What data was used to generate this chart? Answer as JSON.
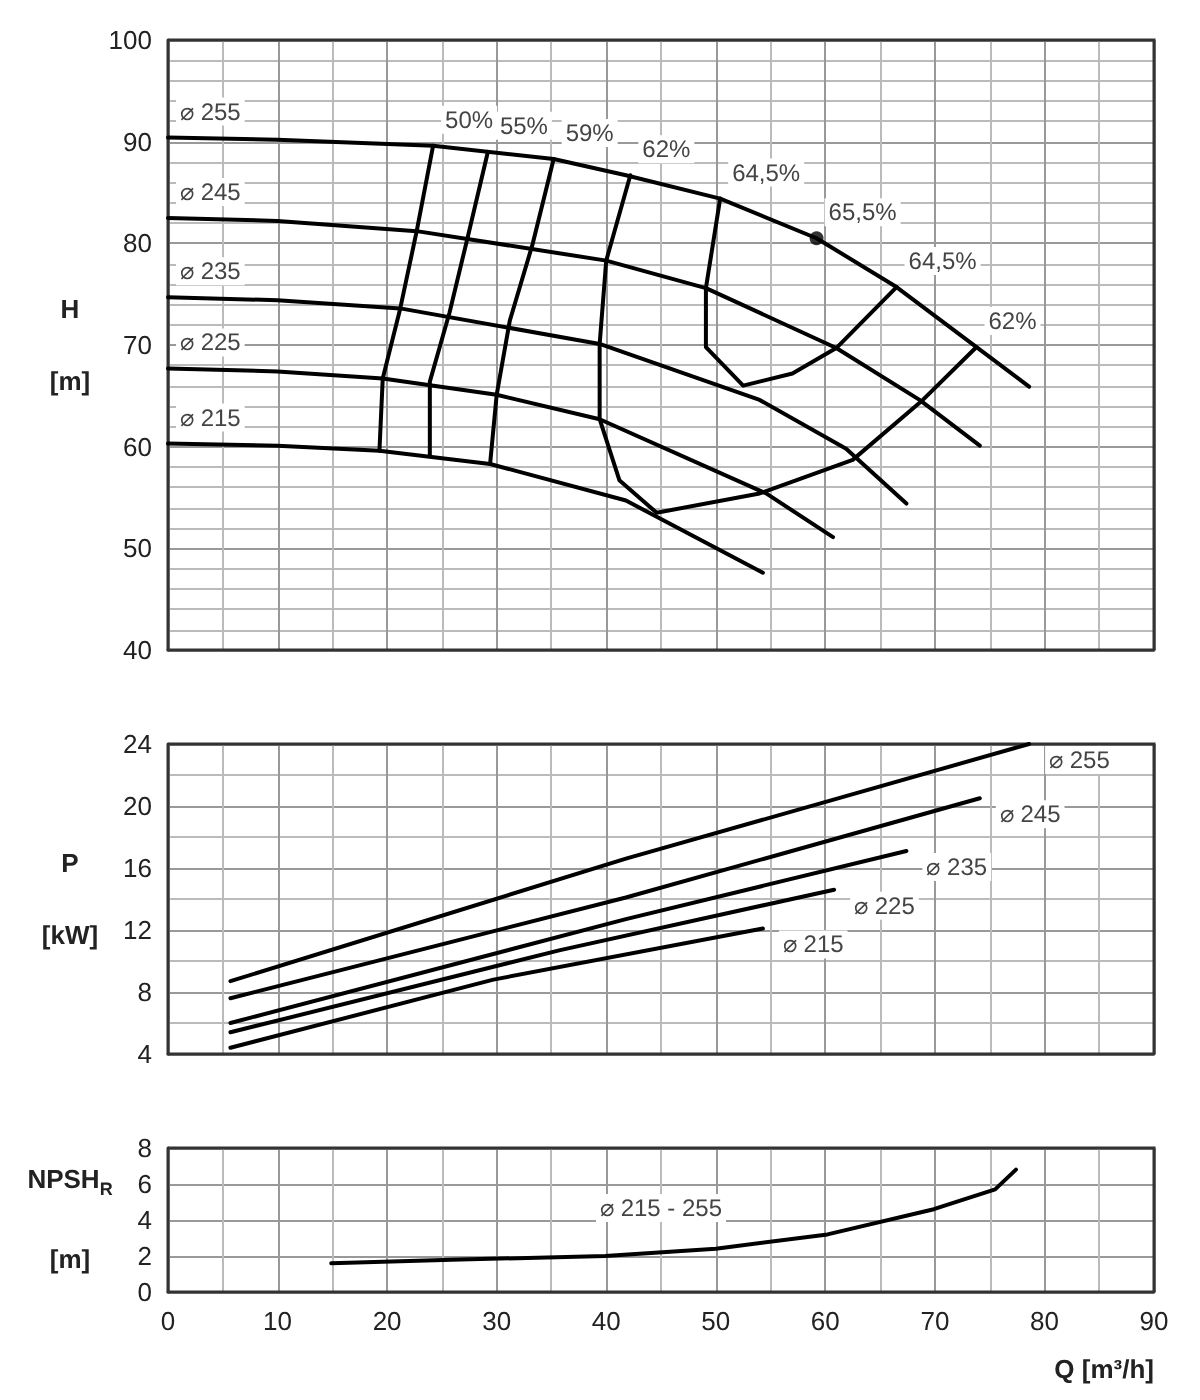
{
  "chart_data": [
    {
      "type": "line",
      "ylabel": "H\n[m]",
      "xlim": [
        0,
        90
      ],
      "xticks": [
        0,
        10,
        20,
        30,
        40,
        50,
        60,
        70,
        80,
        90
      ],
      "ylim": [
        40,
        100
      ],
      "yticks": [
        40,
        50,
        60,
        70,
        80,
        90,
        100
      ],
      "grid": true,
      "tick_labels": "y",
      "line_style": "solid",
      "series": [
        {
          "color": "#000000",
          "x": [
            0,
            10,
            24.2,
            35.2,
            41.8,
            50.4,
            59.2,
            66.5,
            73.8,
            78.6
          ],
          "values": [
            90.4,
            90.2,
            89.6,
            88.3,
            86.7,
            84.4,
            80.5,
            75.7,
            69.8,
            65.9
          ]
        },
        {
          "color": "#000000",
          "x": [
            0,
            10,
            22.7,
            40,
            49.1,
            61,
            68.6,
            74.1
          ],
          "values": [
            82.5,
            82.2,
            81.2,
            78.3,
            75.6,
            69.7,
            64.6,
            60.1
          ]
        },
        {
          "color": "#000000",
          "x": [
            0,
            10,
            21.2,
            39.4,
            54,
            61.9,
            67.4
          ],
          "values": [
            74.7,
            74.4,
            73.6,
            70.1,
            64.6,
            59.8,
            54.4
          ]
        },
        {
          "color": "#000000",
          "x": [
            0,
            10,
            19.6,
            30,
            39.4,
            54.6,
            60.7
          ],
          "values": [
            67.7,
            67.4,
            66.7,
            65.1,
            62.7,
            55.4,
            51.1
          ]
        },
        {
          "color": "#000000",
          "x": [
            0,
            10,
            19.3,
            29.4,
            41.8,
            54.3
          ],
          "values": [
            60.3,
            60.1,
            59.6,
            58.3,
            54.7,
            47.6
          ]
        },
        {
          "color": "#000000",
          "x": [
            24.2,
            22.7,
            21.2,
            19.6,
            19.3
          ],
          "values": [
            89.6,
            81.2,
            73.6,
            66.7,
            59.6
          ]
        },
        {
          "color": "#000000",
          "x": [
            29.2,
            27.4,
            25.7,
            23.9,
            23.9
          ],
          "values": [
            89.0,
            80.8,
            73.2,
            66.4,
            59.1
          ]
        },
        {
          "color": "#000000",
          "x": [
            35.2,
            33.3,
            31.2,
            30,
            29.4
          ],
          "values": [
            88.3,
            80,
            72.4,
            65.1,
            58.3
          ]
        },
        {
          "color": "#000000",
          "x": [
            42.2,
            40,
            39.4,
            39.4,
            41.2,
            44.6,
            54,
            62.5,
            68.9,
            73.8
          ],
          "values": [
            86.7,
            78.3,
            70.1,
            62.7,
            56.7,
            53.5,
            55.4,
            58.7,
            64.6,
            69.8
          ]
        },
        {
          "color": "#000000",
          "x": [
            50.4,
            49.1,
            49.1,
            52.5,
            57,
            61,
            66.5
          ],
          "values": [
            84.4,
            75.6,
            69.8,
            66.0,
            67.2,
            69.7,
            75.7
          ]
        },
        {
          "type": "scatter",
          "color": "#000000",
          "x": [
            59.2
          ],
          "values": [
            80.5
          ]
        }
      ],
      "annotations": [
        {
          "text": "⌀ 255",
          "x": 0,
          "y": 90.4
        },
        {
          "text": "⌀ 245",
          "x": 0,
          "y": 82.5
        },
        {
          "text": "⌀ 235",
          "x": 0,
          "y": 74.7
        },
        {
          "text": "⌀ 225",
          "x": 0,
          "y": 67.7
        },
        {
          "text": "⌀ 215",
          "x": 0,
          "y": 60.3
        },
        {
          "text": "50%",
          "x": 24.2,
          "y": 89.6
        },
        {
          "text": "55%",
          "x": 29.2,
          "y": 89.0
        },
        {
          "text": "59%",
          "x": 35.2,
          "y": 88.3
        },
        {
          "text": "62%",
          "x": 42.2,
          "y": 86.7
        },
        {
          "text": "64,5%",
          "x": 50.4,
          "y": 84.4
        },
        {
          "text": "65,5%",
          "x": 59.2,
          "y": 80.5
        },
        {
          "text": "64,5%",
          "x": 66.5,
          "y": 75.7
        },
        {
          "text": "62%",
          "x": 73.8,
          "y": 69.8
        }
      ]
    },
    {
      "type": "line",
      "ylabel": "P\n[kW]",
      "xlim": [
        0,
        90
      ],
      "xticks": [
        0,
        10,
        20,
        30,
        40,
        50,
        60,
        70,
        80,
        90
      ],
      "ylim": [
        4,
        24
      ],
      "yticks": [
        4,
        8,
        12,
        16,
        20,
        24
      ],
      "grid": true,
      "tick_labels": "y",
      "line_style": "solid",
      "series": [
        {
          "color": "#000000",
          "x": [
            5.7,
            41.8,
            78.6
          ],
          "values": [
            8.7,
            16.6,
            24.0
          ]
        },
        {
          "color": "#000000",
          "x": [
            5.7,
            41.8,
            74.1
          ],
          "values": [
            7.6,
            14.1,
            20.5
          ]
        },
        {
          "color": "#000000",
          "x": [
            5.7,
            41.8,
            67.4
          ],
          "values": [
            6.0,
            12.7,
            17.1
          ]
        },
        {
          "color": "#000000",
          "x": [
            5.7,
            35.8,
            60.8
          ],
          "values": [
            5.4,
            10.7,
            14.6
          ]
        },
        {
          "color": "#000000",
          "x": [
            5.7,
            29.7,
            54.3
          ],
          "values": [
            4.4,
            8.8,
            12.1
          ]
        }
      ],
      "annotations": [
        {
          "text": "⌀ 255",
          "x": 78.6,
          "y": 24.0
        },
        {
          "text": "⌀ 245",
          "x": 74.1,
          "y": 20.5
        },
        {
          "text": "⌀ 235",
          "x": 67.4,
          "y": 17.1
        },
        {
          "text": "⌀ 225",
          "x": 60.8,
          "y": 14.6
        },
        {
          "text": "⌀ 215",
          "x": 54.3,
          "y": 12.1
        }
      ]
    },
    {
      "type": "line",
      "ylabel": "NPSH$_{R}$\n[m]",
      "xlabel": "Q [m³/h]",
      "xlim": [
        0,
        90
      ],
      "xticks": [
        0,
        10,
        20,
        30,
        40,
        50,
        60,
        70,
        80,
        90
      ],
      "ylim": [
        0,
        8
      ],
      "yticks": [
        0,
        2,
        4,
        6,
        8
      ],
      "grid": true,
      "line_style": "solid",
      "series": [
        {
          "color": "#000000",
          "x": [
            14.9,
            26.7,
            39.9,
            50,
            60.2,
            69.9,
            75.5,
            77.4
          ],
          "values": [
            1.6,
            1.8,
            2.0,
            2.4,
            3.2,
            4.6,
            5.7,
            6.8
          ]
        }
      ],
      "annotations": [
        "⌀ 215 - 255"
      ]
    }
  ]
}
